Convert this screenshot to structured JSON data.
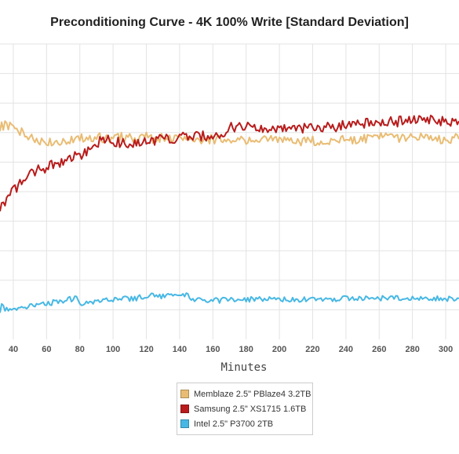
{
  "chart_data": {
    "type": "line",
    "title": "Preconditioning Curve - 4K 100% Write [Standard Deviation]",
    "xlabel": "Minutes",
    "ylabel": "",
    "xlim": [
      32,
      308
    ],
    "ylim": [
      0,
      100
    ],
    "x_ticks": [
      40,
      60,
      80,
      100,
      120,
      140,
      160,
      180,
      200,
      220,
      240,
      260,
      280,
      300
    ],
    "y_gridlines": [
      10,
      20,
      30,
      40,
      50,
      60,
      70,
      80,
      90,
      100
    ],
    "grid": true,
    "legend_position": "bottom",
    "series": [
      {
        "name": "Memblaze 2.5\" PBlaze4 3.2TB",
        "color": "#e9bc73",
        "x": [
          32,
          35,
          40,
          45,
          50,
          55,
          60,
          65,
          70,
          75,
          80,
          85,
          90,
          95,
          100,
          105,
          110,
          115,
          120,
          125,
          130,
          135,
          140,
          145,
          150,
          155,
          160,
          165,
          170,
          175,
          180,
          185,
          190,
          195,
          200,
          205,
          210,
          215,
          220,
          225,
          230,
          235,
          240,
          245,
          250,
          255,
          260,
          265,
          270,
          275,
          280,
          285,
          290,
          295,
          300,
          305,
          308
        ],
        "values": [
          72.1,
          72.4,
          71.5,
          70.0,
          68.2,
          67.2,
          66.9,
          67.3,
          67.2,
          67.7,
          68.0,
          68.5,
          68.5,
          68.1,
          68.2,
          68.7,
          68.3,
          68.0,
          68.5,
          67.9,
          68.2,
          67.8,
          68.4,
          67.5,
          67.4,
          67.6,
          67.8,
          67.4,
          67.8,
          67.6,
          67.2,
          67.0,
          67.4,
          67.7,
          67.2,
          67.6,
          66.7,
          67.0,
          67.3,
          67.0,
          67.2,
          67.4,
          68.0,
          67.6,
          67.9,
          68.3,
          68.5,
          68.4,
          68.4,
          68.0,
          68.2,
          68.4,
          67.8,
          67.6,
          67.9,
          68.1,
          67.8
        ]
      },
      {
        "name": "Samsung 2.5\" XS1715 1.6TB",
        "color": "#b81c1c",
        "x": [
          32,
          35,
          40,
          45,
          50,
          55,
          60,
          65,
          70,
          75,
          80,
          85,
          90,
          95,
          100,
          105,
          110,
          115,
          120,
          125,
          130,
          135,
          140,
          145,
          150,
          155,
          160,
          165,
          170,
          175,
          180,
          185,
          190,
          195,
          200,
          205,
          210,
          215,
          220,
          225,
          230,
          235,
          240,
          245,
          250,
          255,
          260,
          265,
          270,
          275,
          280,
          285,
          290,
          295,
          300,
          305,
          308
        ],
        "values": [
          44.5,
          47.0,
          50.5,
          53.0,
          56.0,
          57.5,
          58.0,
          59.5,
          60.5,
          61.5,
          62.5,
          63.5,
          66.0,
          68.0,
          67.0,
          66.5,
          66.0,
          66.8,
          67.2,
          67.5,
          67.8,
          68.0,
          68.2,
          68.4,
          68.6,
          68.8,
          69.0,
          69.5,
          71.5,
          72.0,
          71.8,
          72.2,
          71.5,
          71.6,
          71.0,
          71.2,
          71.4,
          71.6,
          71.2,
          71.5,
          71.8,
          72.0,
          73.0,
          73.2,
          73.0,
          73.5,
          73.8,
          74.0,
          73.6,
          74.2,
          74.5,
          74.0,
          74.2,
          73.8,
          74.0,
          73.6,
          73.9
        ]
      },
      {
        "name": "Intel 2.5\" P3700 2TB",
        "color": "#47b8e4",
        "x": [
          32,
          33,
          34,
          35,
          40,
          45,
          50,
          55,
          60,
          65,
          70,
          75,
          78,
          80,
          85,
          90,
          95,
          100,
          105,
          110,
          115,
          120,
          125,
          130,
          135,
          140,
          145,
          150,
          155,
          160,
          165,
          170,
          175,
          180,
          185,
          190,
          195,
          200,
          205,
          210,
          215,
          220,
          225,
          230,
          235,
          240,
          245,
          250,
          255,
          260,
          265,
          270,
          275,
          280,
          285,
          290,
          295,
          300,
          305,
          308
        ],
        "values": [
          9.0,
          12.0,
          11.5,
          10.5,
          10.5,
          10.8,
          11.2,
          11.6,
          12.0,
          12.6,
          13.2,
          13.6,
          14.2,
          12.2,
          12.6,
          13.0,
          13.2,
          13.4,
          13.6,
          13.8,
          14.0,
          14.8,
          14.6,
          14.5,
          14.8,
          15.0,
          14.8,
          13.2,
          13.0,
          13.1,
          13.2,
          13.4,
          13.5,
          13.6,
          13.4,
          13.6,
          13.5,
          13.4,
          13.6,
          13.5,
          13.6,
          13.4,
          13.5,
          13.6,
          13.7,
          13.8,
          13.9,
          14.0,
          13.9,
          14.0,
          13.8,
          13.9,
          14.0,
          13.9,
          14.0,
          13.8,
          13.9,
          13.8,
          13.8,
          13.9
        ]
      }
    ]
  }
}
